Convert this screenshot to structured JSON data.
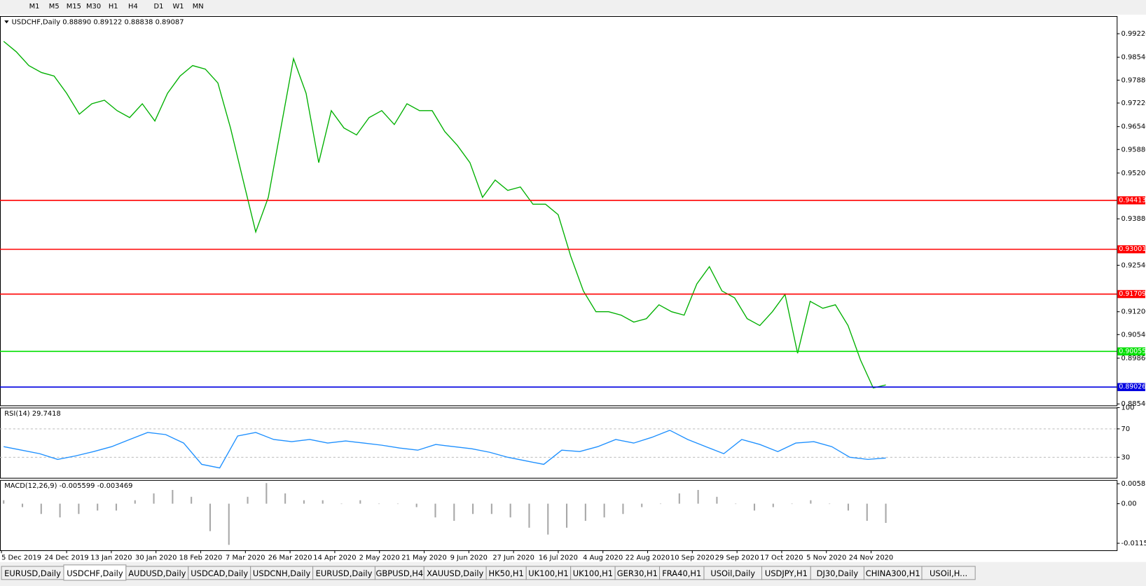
{
  "toolbar": {
    "buttons": [
      "M1",
      "M5",
      "M15",
      "M30",
      "H1",
      "H4",
      "D1",
      "W1",
      "MN"
    ]
  },
  "chart_data": [
    {
      "type": "line",
      "title": "USDCHF,Daily  0.88890 0.89122 0.88838 0.89087",
      "color": "#00b000",
      "values": [
        0.99,
        0.987,
        0.983,
        0.981,
        0.98,
        0.975,
        0.969,
        0.972,
        0.973,
        0.97,
        0.968,
        0.972,
        0.967,
        0.975,
        0.98,
        0.983,
        0.982,
        0.978,
        0.965,
        0.95,
        0.935,
        0.945,
        0.965,
        0.985,
        0.975,
        0.955,
        0.97,
        0.965,
        0.963,
        0.968,
        0.97,
        0.966,
        0.972,
        0.97,
        0.97,
        0.964,
        0.96,
        0.955,
        0.945,
        0.95,
        0.947,
        0.948,
        0.943,
        0.943,
        0.94,
        0.928,
        0.918,
        0.912,
        0.912,
        0.911,
        0.909,
        0.91,
        0.914,
        0.912,
        0.911,
        0.92,
        0.925,
        0.918,
        0.916,
        0.91,
        0.908,
        0.912,
        0.917,
        0.9,
        0.915,
        0.913,
        0.914,
        0.908,
        0.898,
        0.89,
        0.8909
      ],
      "ylim": [
        0.88498,
        0.99728
      ],
      "yticks": [
        {
          "value": 0.9922,
          "label": "0.99220"
        },
        {
          "value": 0.9854,
          "label": "0.98540"
        },
        {
          "value": 0.9788,
          "label": "0.97880"
        },
        {
          "value": 0.9722,
          "label": "0.97220"
        },
        {
          "value": 0.9654,
          "label": "0.96540"
        },
        {
          "value": 0.9588,
          "label": "0.95880"
        },
        {
          "value": 0.952,
          "label": "0.95200"
        },
        {
          "value": 0.9388,
          "label": "0.93880"
        },
        {
          "value": 0.9254,
          "label": "0.92540"
        },
        {
          "value": 0.912,
          "label": "0.91200"
        },
        {
          "value": 0.9054,
          "label": "0.90540"
        },
        {
          "value": 0.8986,
          "label": "0.89860"
        },
        {
          "value": 0.8854,
          "label": "0.88540"
        }
      ],
      "levels": [
        0.94413,
        0.93001,
        0.91709,
        0.90055,
        0.89026
      ],
      "level_colors": [
        "#ff0000",
        "#ff0000",
        "#ff0000",
        "#00e000",
        "#0000e0"
      ],
      "date_labels": [
        "5 Dec 2019",
        "24 Dec 2019",
        "13 Jan 2020",
        "30 Jan 2020",
        "18 Feb 2020",
        "7 Mar 2020",
        "26 Mar 2020",
        "14 Apr 2020",
        "2 May 2020",
        "21 May 2020",
        "9 Jun 2020",
        "27 Jun 2020",
        "16 Jul 2020",
        "4 Aug 2020",
        "22 Aug 2020",
        "10 Sep 2020",
        "29 Sep 2020",
        "17 Oct 2020",
        "5 Nov 2020",
        "24 Nov 2020"
      ]
    },
    {
      "type": "line",
      "title": "RSI(14) 29.7418",
      "color": "#1e90ff",
      "values": [
        45,
        40,
        35,
        27,
        32,
        38,
        45,
        55,
        65,
        62,
        50,
        20,
        15,
        60,
        65,
        55,
        52,
        55,
        50,
        53,
        50,
        47,
        43,
        40,
        48,
        45,
        42,
        37,
        30,
        25,
        20,
        40,
        38,
        45,
        55,
        50,
        58,
        68,
        55,
        45,
        35,
        55,
        48,
        38,
        50,
        52,
        45,
        30,
        27,
        29
      ],
      "ylim": [
        0,
        100
      ],
      "yticks": [
        100,
        70,
        30
      ]
    },
    {
      "type": "bar",
      "title": "MACD(12,26,9) -0.005599 -0.003469",
      "color": "#a8a8a8",
      "values": [
        0.001,
        -0.001,
        -0.003,
        -0.004,
        -0.003,
        -0.002,
        -0.002,
        0.001,
        0.003,
        0.004,
        0.002,
        -0.008,
        -0.012,
        0.002,
        0.006,
        0.003,
        0.001,
        0.001,
        0.0,
        0.001,
        0.0,
        0.0,
        -0.001,
        -0.004,
        -0.005,
        -0.003,
        -0.003,
        -0.004,
        -0.007,
        -0.009,
        -0.007,
        -0.005,
        -0.004,
        -0.003,
        -0.001,
        0.0,
        0.003,
        0.004,
        0.002,
        0.0,
        -0.002,
        -0.001,
        0.0,
        0.001,
        0.0,
        -0.002,
        -0.005,
        -0.0056
      ],
      "ylim": [
        -0.013577,
        0.006896
      ],
      "yticks": [
        0.005818,
        {
          "value": 0,
          "label": "0.00"
        },
        -0.011541
      ]
    }
  ],
  "tabs": [
    "EURUSD,Daily",
    "USDCHF,Daily",
    "AUDUSD,Daily",
    "USDCAD,Daily",
    "USDCNH,Daily",
    "EURUSD,Daily",
    "GBPUSD,H4",
    "XAUUSD,Daily",
    "HK50,H1",
    "UK100,H1",
    "UK100,H1",
    "GER30,H1",
    "FRA40,H1",
    "USOil,Daily",
    "USDJPY,H1",
    "DJ30,Daily",
    "CHINA300,H1",
    "USOil,H..."
  ],
  "active_tab": 1
}
